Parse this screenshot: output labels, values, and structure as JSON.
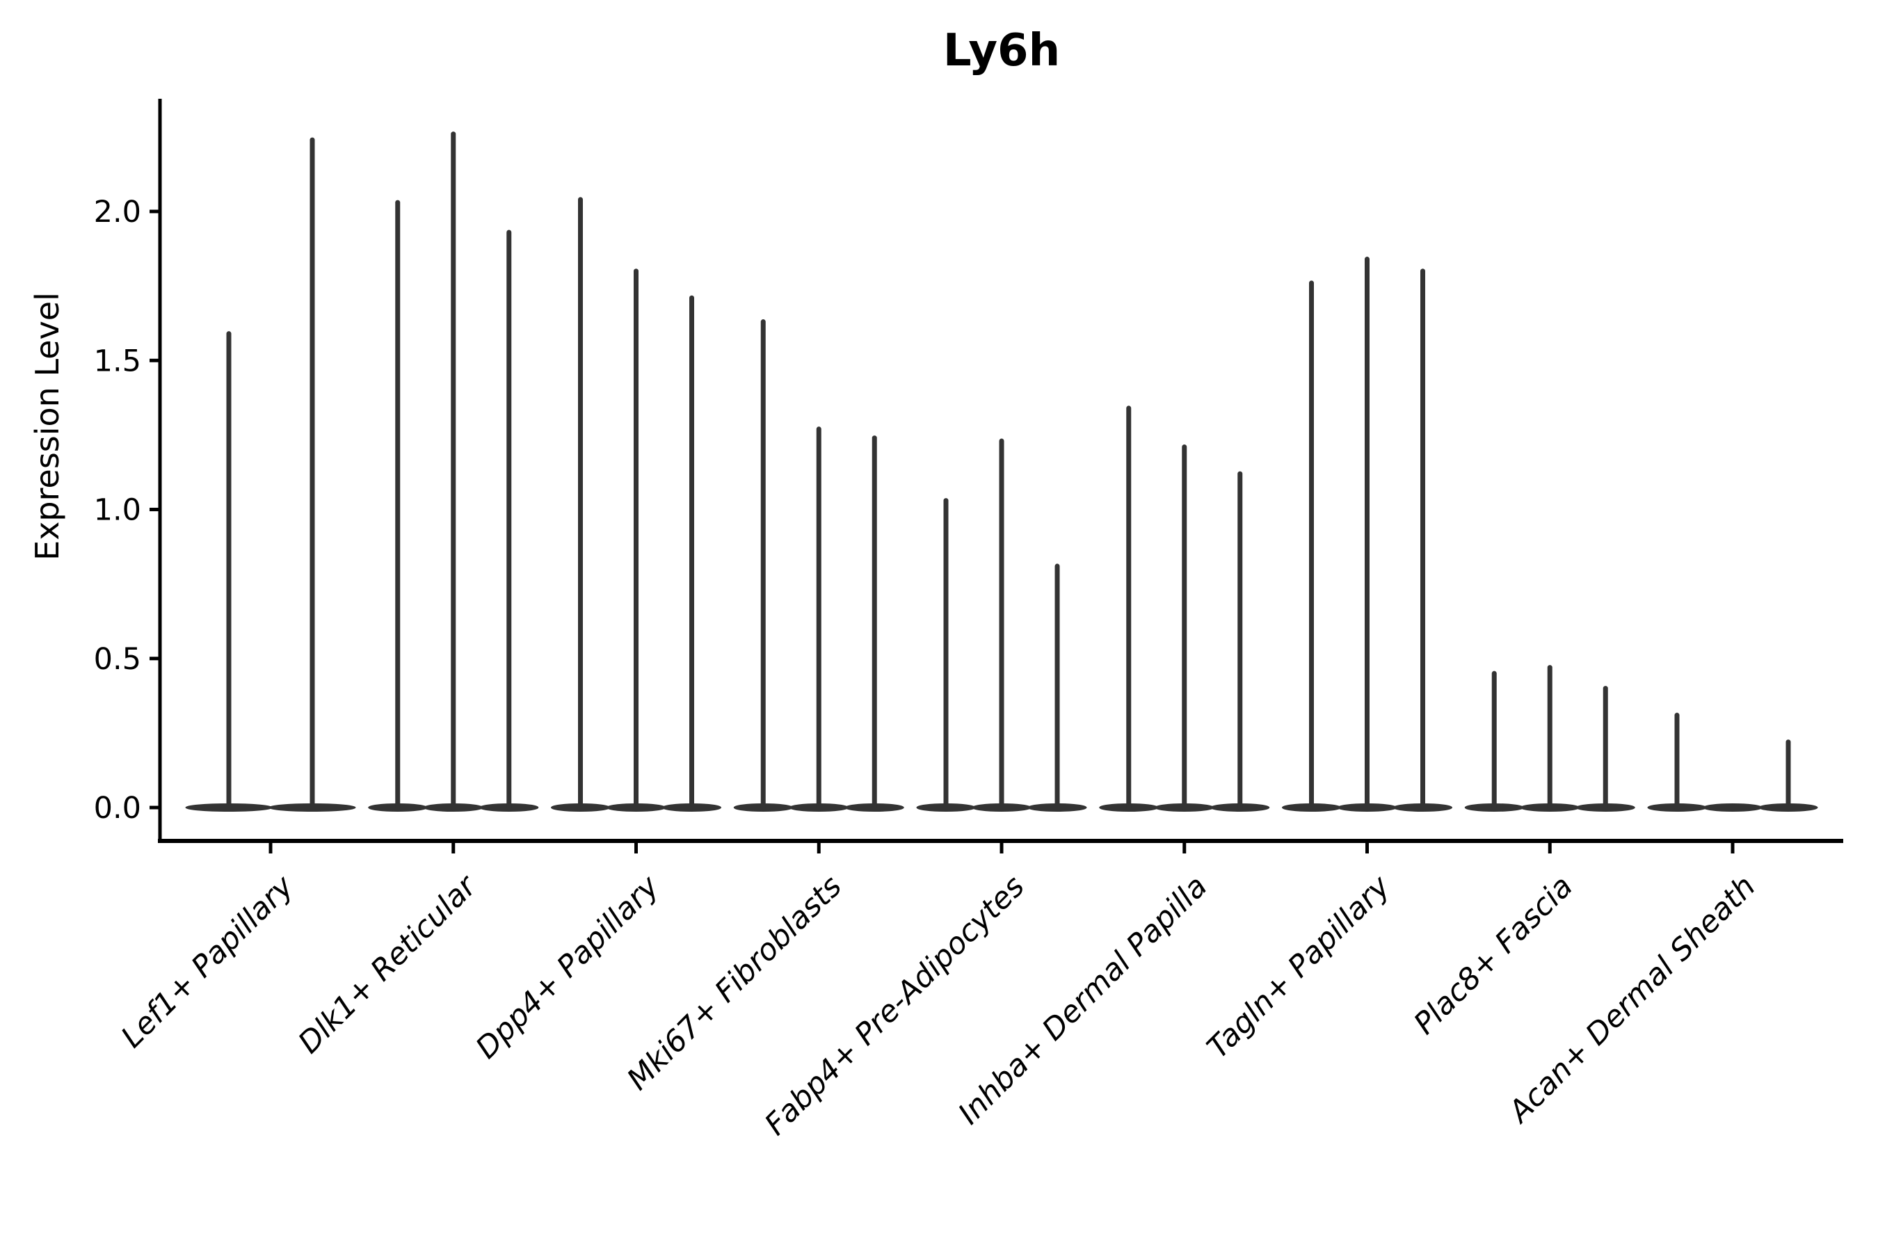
{
  "title": "Ly6h",
  "y_axis": {
    "label": "Expression Level",
    "tick_labels": [
      "0.0",
      "0.5",
      "1.0",
      "1.5",
      "2.0"
    ]
  },
  "chart_data": {
    "type": "violin",
    "title": "Ly6h",
    "xlabel": "",
    "ylabel": "Expression Level",
    "ylim": [
      -0.11,
      2.38
    ],
    "yticks": [
      0.0,
      0.5,
      1.0,
      1.5,
      2.0
    ],
    "grid": false,
    "legend_position": "none",
    "categories": [
      "Lef1+ Papillary",
      "Dlk1+ Reticular",
      "Dpp4+ Papillary",
      "Mki67+ Fibroblasts",
      "Fabp4+ Pre-Adipocytes",
      "Inhba+ Dermal Papilla",
      "Tagln+ Papillary",
      "Plac8+ Fascia",
      "Acan+ Dermal Sheath"
    ],
    "groups": [
      {
        "category": "Lef1+ Papillary",
        "spike_maxima": [
          1.59,
          2.24
        ]
      },
      {
        "category": "Dlk1+ Reticular",
        "spike_maxima": [
          2.03,
          2.26,
          1.93
        ]
      },
      {
        "category": "Dpp4+ Papillary",
        "spike_maxima": [
          2.04,
          1.8,
          1.71
        ]
      },
      {
        "category": "Mki67+ Fibroblasts",
        "spike_maxima": [
          1.63,
          1.27,
          1.24
        ]
      },
      {
        "category": "Fabp4+ Pre-Adipocytes",
        "spike_maxima": [
          1.03,
          1.23,
          0.81
        ]
      },
      {
        "category": "Inhba+ Dermal Papilla",
        "spike_maxima": [
          1.34,
          1.21,
          1.12
        ]
      },
      {
        "category": "Tagln+ Papillary",
        "spike_maxima": [
          1.76,
          1.84,
          1.8
        ]
      },
      {
        "category": "Plac8+ Fascia",
        "spike_maxima": [
          0.45,
          0.47,
          0.4
        ]
      },
      {
        "category": "Acan+ Dermal Sheath",
        "spike_maxima": [
          0.31,
          0.0,
          0.22
        ]
      }
    ],
    "violin_shape_note": "each violin is collapsed: flat lens-shaped base at expression 0 with a thin vertical density spike up to its maximum value"
  },
  "colors": {
    "violin": "#333333",
    "axis": "#000000",
    "text": "#000000",
    "background": "#ffffff"
  }
}
